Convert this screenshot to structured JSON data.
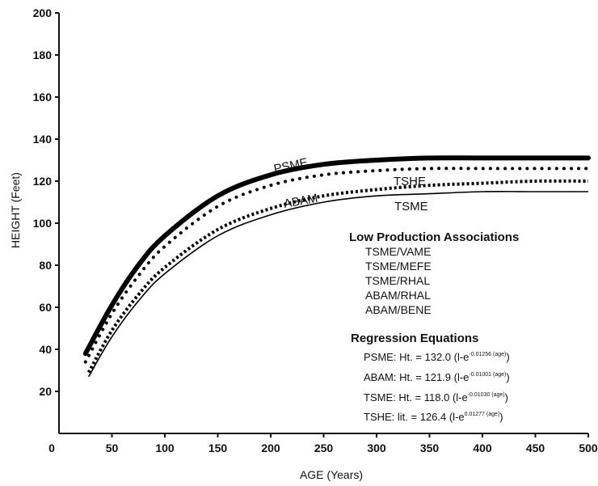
{
  "chart_data": {
    "type": "line",
    "title": "",
    "xlabel": "AGE (Years)",
    "ylabel": "HEIGHT (Feet)",
    "xlim": [
      0,
      500
    ],
    "ylim": [
      0,
      200
    ],
    "xticks": [
      "0",
      "50",
      "100",
      "150",
      "200",
      "250",
      "300",
      "350",
      "400",
      "450",
      "500"
    ],
    "yticks": [
      "200",
      "180",
      "160",
      "140",
      "120",
      "100",
      "80",
      "60",
      "40",
      "20"
    ],
    "grid": false,
    "series": [
      {
        "name": "PSME",
        "style": "thick-solid",
        "x": [
          25,
          50,
          75,
          100,
          150,
          200,
          250,
          300,
          350,
          400,
          450,
          500
        ],
        "y": [
          38,
          61,
          80,
          94,
          113,
          123,
          128,
          130,
          131,
          131,
          131,
          131
        ]
      },
      {
        "name": "TSHE",
        "style": "dotted",
        "x": [
          25,
          50,
          75,
          100,
          150,
          200,
          250,
          300,
          350,
          400,
          450,
          500
        ],
        "y": [
          34,
          57,
          75,
          89,
          108,
          118,
          123,
          125,
          126,
          126,
          126,
          126
        ]
      },
      {
        "name": "ABAM",
        "style": "dashed",
        "x": [
          28,
          50,
          75,
          100,
          150,
          200,
          250,
          300,
          350,
          400,
          450,
          500
        ],
        "y": [
          29,
          49,
          66,
          79,
          97,
          107,
          113,
          116,
          118,
          119,
          120,
          120
        ]
      },
      {
        "name": "TSME",
        "style": "thin-solid",
        "x": [
          28,
          50,
          75,
          100,
          150,
          200,
          250,
          300,
          350,
          400,
          450,
          500
        ],
        "y": [
          27,
          46,
          63,
          76,
          94,
          104,
          110,
          113,
          114,
          115,
          115,
          115
        ]
      }
    ],
    "annotations": {
      "low_production_title": "Low Production Associations",
      "low_production_items": [
        "TSME/VAME",
        "TSME/MEFE",
        "TSME/RHAL",
        "ABAM/RHAL",
        "ABAM/BENE"
      ],
      "regression_title": "Regression Equations",
      "equations": [
        {
          "lhs": "PSME: Ht. = 132.0 (l-e",
          "exp": "-0.01256 (age)",
          "rhs": ")"
        },
        {
          "lhs": "ABAM: Ht. = 121.9 (l-e",
          "exp": "-0.01001 (age)",
          "rhs": ")"
        },
        {
          "lhs": "TSME: Ht. = 118.0 (l-e",
          "exp": "-0.01030 (age)",
          "rhs": ")"
        },
        {
          "lhs": "TSHE: lit. = 126.4 (l-e",
          "exp": "0.01277 (age)",
          "rhs": ")"
        }
      ]
    }
  }
}
